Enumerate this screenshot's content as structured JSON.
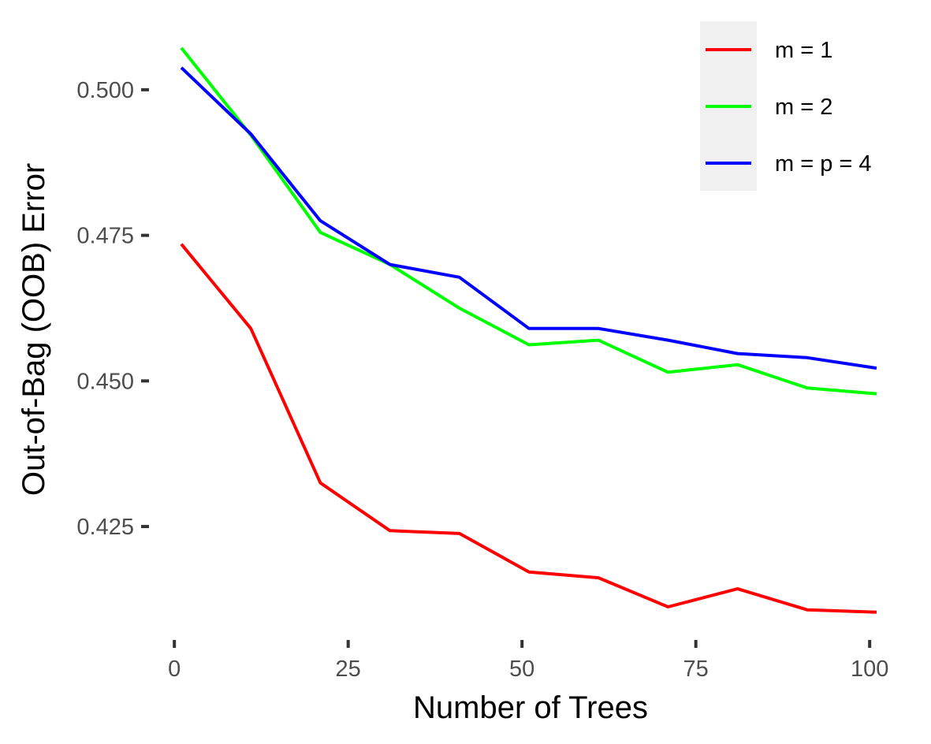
{
  "chart_data": {
    "type": "line",
    "title": "",
    "xlabel": "Number of Trees",
    "ylabel": "Out-of-Bag (OOB) Error",
    "x": [
      1,
      11,
      21,
      31,
      41,
      51,
      61,
      71,
      81,
      91,
      101
    ],
    "xlim": [
      1,
      101
    ],
    "ylim": [
      0.4085,
      0.51
    ],
    "xticks": [
      0,
      25,
      50,
      75,
      100
    ],
    "xtick_labels": [
      "0",
      "25",
      "50",
      "75",
      "100"
    ],
    "yticks": [
      0.425,
      0.45,
      0.475,
      0.5
    ],
    "ytick_labels": [
      "0.425",
      "0.450",
      "0.475",
      "0.500"
    ],
    "grid": false,
    "legend_position": "top-right",
    "series": [
      {
        "name": "m = 1",
        "color": "#ff0000",
        "values": [
          0.4735,
          0.459,
          0.4325,
          0.4243,
          0.4238,
          0.4172,
          0.4162,
          0.4112,
          0.4143,
          0.4107,
          0.4103
        ]
      },
      {
        "name": "m = 2",
        "color": "#00ff00",
        "values": [
          0.5072,
          0.4922,
          0.4755,
          0.47,
          0.4625,
          0.4562,
          0.457,
          0.4515,
          0.4528,
          0.4488,
          0.4478
        ]
      },
      {
        "name": "m = p = 4",
        "color": "#0000ff",
        "values": [
          0.5038,
          0.4924,
          0.4775,
          0.47,
          0.4678,
          0.459,
          0.459,
          0.457,
          0.4547,
          0.454,
          0.4522
        ]
      }
    ]
  }
}
